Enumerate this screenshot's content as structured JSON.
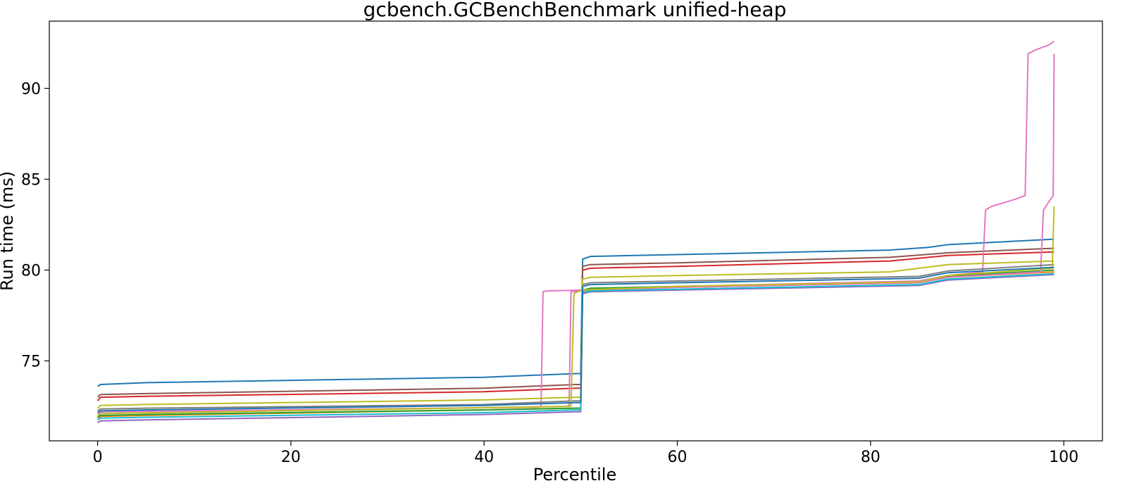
{
  "chart_data": {
    "type": "line",
    "title": "gcbench.GCBenchBenchmark unified-heap",
    "xlabel": "Percentile",
    "ylabel": "Run time (ms)",
    "xlim": [
      -5,
      104
    ],
    "ylim": [
      70.6,
      93.7
    ],
    "xticks": [
      0,
      20,
      40,
      60,
      80,
      100
    ],
    "yticks": [
      75,
      80,
      85,
      90
    ],
    "grid": false,
    "legend": "none",
    "series": [
      {
        "color": "#1f77b4",
        "points": [
          [
            0,
            73.6
          ],
          [
            0.3,
            73.7
          ],
          [
            5,
            73.8
          ],
          [
            40,
            74.1
          ],
          [
            49.5,
            74.3
          ],
          [
            50,
            74.3
          ],
          [
            50.2,
            80.6
          ],
          [
            51,
            80.75
          ],
          [
            60,
            80.85
          ],
          [
            82,
            81.1
          ],
          [
            86,
            81.25
          ],
          [
            88,
            81.4
          ],
          [
            99,
            81.7
          ]
        ]
      },
      {
        "color": "#ff7f0e",
        "points": [
          [
            0,
            71.85
          ],
          [
            0.3,
            71.95
          ],
          [
            5,
            72.0
          ],
          [
            40,
            72.3
          ],
          [
            49.5,
            72.4
          ],
          [
            50,
            72.4
          ],
          [
            50.2,
            78.8
          ],
          [
            51,
            78.95
          ],
          [
            60,
            79.05
          ],
          [
            85,
            79.3
          ],
          [
            88,
            79.6
          ],
          [
            99,
            79.9
          ]
        ]
      },
      {
        "color": "#2ca02c",
        "points": [
          [
            0,
            71.9
          ],
          [
            0.3,
            72.0
          ],
          [
            5,
            72.05
          ],
          [
            40,
            72.3
          ],
          [
            49.5,
            72.4
          ],
          [
            50,
            72.4
          ],
          [
            50.2,
            78.9
          ],
          [
            51,
            79.0
          ],
          [
            60,
            79.1
          ],
          [
            85,
            79.35
          ],
          [
            88,
            79.65
          ],
          [
            99,
            80.0
          ]
        ]
      },
      {
        "color": "#d62728",
        "points": [
          [
            0,
            72.8
          ],
          [
            0.3,
            73.0
          ],
          [
            5,
            73.05
          ],
          [
            40,
            73.3
          ],
          [
            49.5,
            73.5
          ],
          [
            50,
            73.5
          ],
          [
            50.2,
            80.0
          ],
          [
            51,
            80.1
          ],
          [
            60,
            80.2
          ],
          [
            82,
            80.5
          ],
          [
            88,
            80.8
          ],
          [
            99,
            81.0
          ]
        ]
      },
      {
        "color": "#9467bd",
        "points": [
          [
            0,
            71.6
          ],
          [
            0.3,
            71.7
          ],
          [
            5,
            71.75
          ],
          [
            40,
            72.05
          ],
          [
            49.5,
            72.2
          ],
          [
            50,
            72.2
          ],
          [
            50.2,
            78.7
          ],
          [
            51,
            78.8
          ],
          [
            60,
            78.9
          ],
          [
            85,
            79.15
          ],
          [
            88,
            79.45
          ],
          [
            99,
            79.75
          ]
        ]
      },
      {
        "color": "#8c564b",
        "points": [
          [
            0,
            73.0
          ],
          [
            0.3,
            73.15
          ],
          [
            5,
            73.2
          ],
          [
            40,
            73.5
          ],
          [
            49.5,
            73.7
          ],
          [
            50,
            73.7
          ],
          [
            50.2,
            80.2
          ],
          [
            51,
            80.3
          ],
          [
            60,
            80.4
          ],
          [
            82,
            80.7
          ],
          [
            88,
            80.95
          ],
          [
            99,
            81.2
          ]
        ]
      },
      {
        "color": "#e377c2",
        "points": [
          [
            0,
            72.1
          ],
          [
            0.3,
            72.2
          ],
          [
            45.5,
            72.45
          ],
          [
            45.9,
            72.5
          ],
          [
            46.1,
            78.8
          ],
          [
            46.5,
            78.85
          ],
          [
            50,
            78.9
          ],
          [
            60,
            79.1
          ],
          [
            85,
            79.4
          ],
          [
            88,
            79.7
          ],
          [
            91.6,
            79.9
          ],
          [
            91.9,
            83.3
          ],
          [
            92.5,
            83.5
          ],
          [
            95,
            83.9
          ],
          [
            96.0,
            84.1
          ],
          [
            96.3,
            91.9
          ],
          [
            97,
            92.1
          ],
          [
            98.5,
            92.4
          ],
          [
            99,
            92.6
          ]
        ]
      },
      {
        "color": "#e377c2",
        "points": [
          [
            0,
            72.0
          ],
          [
            0.3,
            72.1
          ],
          [
            48.5,
            72.5
          ],
          [
            48.8,
            72.55
          ],
          [
            49.0,
            78.8
          ],
          [
            50,
            78.85
          ],
          [
            60,
            79.05
          ],
          [
            85,
            79.3
          ],
          [
            88,
            79.6
          ],
          [
            97.6,
            79.9
          ],
          [
            97.9,
            83.3
          ],
          [
            98.5,
            83.8
          ],
          [
            98.9,
            84.1
          ],
          [
            99.0,
            91.9
          ]
        ]
      },
      {
        "color": "#7f7f7f",
        "points": [
          [
            0,
            72.25
          ],
          [
            0.3,
            72.35
          ],
          [
            5,
            72.4
          ],
          [
            40,
            72.6
          ],
          [
            49.5,
            72.8
          ],
          [
            50,
            72.8
          ],
          [
            50.2,
            79.2
          ],
          [
            51,
            79.3
          ],
          [
            60,
            79.4
          ],
          [
            85,
            79.65
          ],
          [
            88,
            79.95
          ],
          [
            99,
            80.3
          ]
        ]
      },
      {
        "color": "#bcbd22",
        "points": [
          [
            0,
            72.4
          ],
          [
            0.3,
            72.55
          ],
          [
            5,
            72.6
          ],
          [
            40,
            72.85
          ],
          [
            49.5,
            73.0
          ],
          [
            50,
            73.0
          ],
          [
            50.2,
            79.5
          ],
          [
            51,
            79.6
          ],
          [
            60,
            79.7
          ],
          [
            82,
            79.9
          ],
          [
            88,
            80.3
          ],
          [
            99,
            80.5
          ]
        ]
      },
      {
        "color": "#bcbd22",
        "points": [
          [
            0,
            72.0
          ],
          [
            0.3,
            72.1
          ],
          [
            49.0,
            72.5
          ],
          [
            49.3,
            78.7
          ],
          [
            50,
            78.9
          ],
          [
            60,
            79.1
          ],
          [
            85,
            79.35
          ],
          [
            88,
            79.7
          ],
          [
            98.8,
            80.1
          ],
          [
            99.0,
            83.5
          ]
        ]
      },
      {
        "color": "#17becf",
        "points": [
          [
            0,
            71.75
          ],
          [
            0.3,
            71.85
          ],
          [
            5,
            71.9
          ],
          [
            40,
            72.15
          ],
          [
            49.5,
            72.3
          ],
          [
            50,
            72.3
          ],
          [
            50.2,
            78.75
          ],
          [
            51,
            78.85
          ],
          [
            60,
            78.95
          ],
          [
            85,
            79.2
          ],
          [
            88,
            79.5
          ],
          [
            99,
            79.8
          ]
        ]
      },
      {
        "color": "#1f77b4",
        "points": [
          [
            0,
            72.15
          ],
          [
            0.3,
            72.25
          ],
          [
            5,
            72.3
          ],
          [
            40,
            72.55
          ],
          [
            49.5,
            72.7
          ],
          [
            50,
            72.7
          ],
          [
            50.2,
            79.1
          ],
          [
            51,
            79.2
          ],
          [
            60,
            79.3
          ],
          [
            85,
            79.55
          ],
          [
            88,
            79.85
          ],
          [
            99,
            80.15
          ]
        ]
      }
    ]
  }
}
